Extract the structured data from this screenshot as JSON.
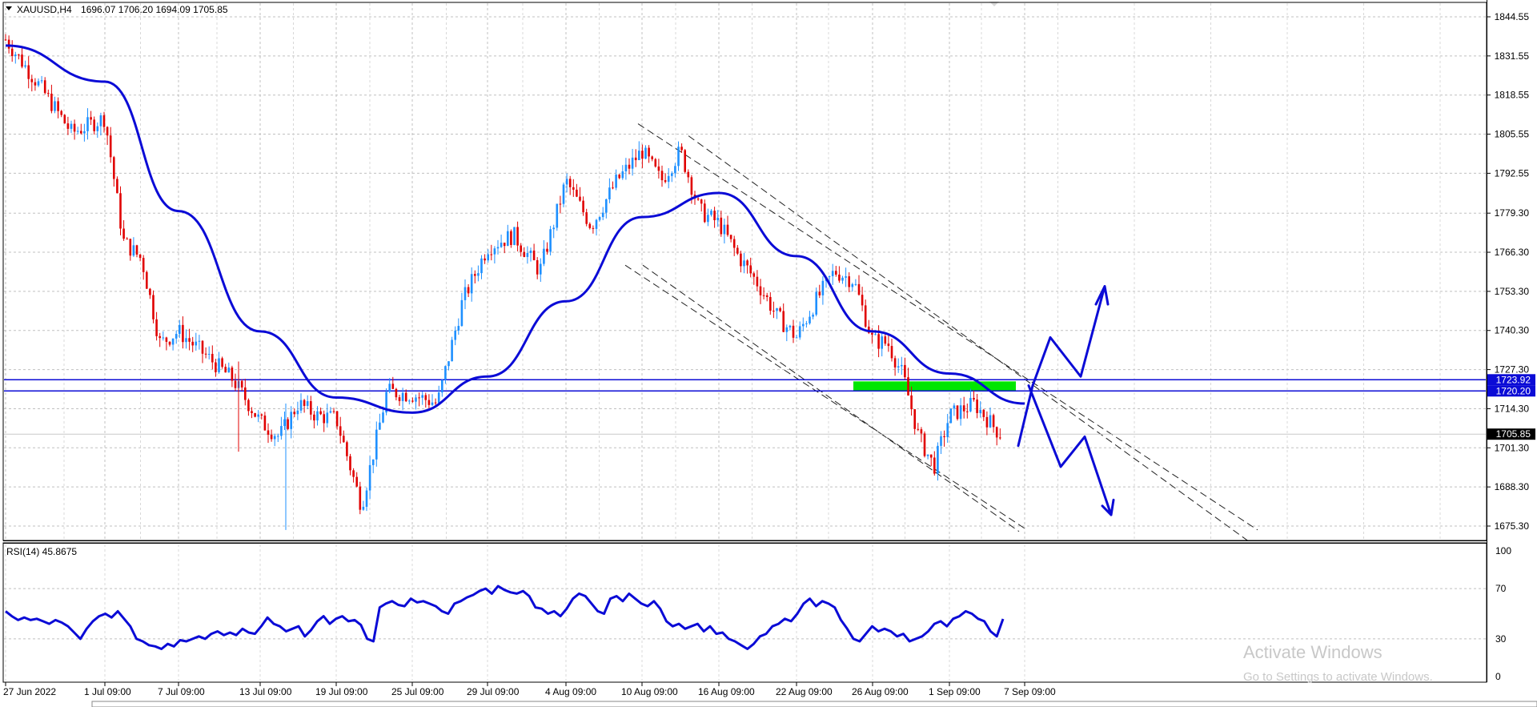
{
  "symbol_header": {
    "symbol": "XAUUSD,H4",
    "ohlc": "1696.07 1706.20 1694.09 1705.85"
  },
  "chart_data": [
    {
      "type": "candlestick",
      "title": "XAUUSD,H4",
      "ylim": [
        1665.0,
        1849.0
      ],
      "y_ticks": [
        "1844.55",
        "1831.55",
        "1818.55",
        "1805.55",
        "1792.55",
        "1779.30",
        "1766.30",
        "1753.30",
        "1740.30",
        "1727.30",
        "1714.30",
        "1701.30",
        "1688.30",
        "1675.30"
      ],
      "x_ticks": [
        "27 Jun 2022",
        "1 Jul 09:00",
        "7 Jul 09:00",
        "13 Jul 09:00",
        "19 Jul 09:00",
        "25 Jul 09:00",
        "29 Jul 09:00",
        "4 Aug 09:00",
        "10 Aug 09:00",
        "16 Aug 09:00",
        "22 Aug 09:00",
        "26 Aug 09:00",
        "1 Sep 09:00",
        "7 Sep 09:00"
      ],
      "price_keypoints": [
        {
          "t": "27 Jun 2022",
          "p": 1837
        },
        {
          "t": "28 Jun 2022",
          "p": 1822
        },
        {
          "t": "30 Jun 2022",
          "p": 1806
        },
        {
          "t": "1 Jul 09:00",
          "p": 1811
        },
        {
          "t": "2 Jul 2022",
          "p": 1770
        },
        {
          "t": "5 Jul 2022",
          "p": 1764
        },
        {
          "t": "6 Jul 2022",
          "p": 1736
        },
        {
          "t": "7 Jul 09:00",
          "p": 1740
        },
        {
          "t": "11 Jul 2022",
          "p": 1732
        },
        {
          "t": "12 Jul 2022",
          "p": 1724
        },
        {
          "t": "13 Jul 09:00",
          "p": 1710
        },
        {
          "t": "14 Jul 2022",
          "p": 1705
        },
        {
          "t": "15 Jul 2022",
          "p": 1716
        },
        {
          "t": "18 Jul 2022",
          "p": 1712
        },
        {
          "t": "19 Jul 09:00",
          "p": 1711
        },
        {
          "t": "21 Jul 2022",
          "p": 1682
        },
        {
          "t": "22 Jul 2022",
          "p": 1720
        },
        {
          "t": "25 Jul 09:00",
          "p": 1719
        },
        {
          "t": "27 Jul 2022",
          "p": 1716
        },
        {
          "t": "28 Jul 2022",
          "p": 1750
        },
        {
          "t": "29 Jul 09:00",
          "p": 1768
        },
        {
          "t": "1 Aug 2022",
          "p": 1772
        },
        {
          "t": "3 Aug 2022",
          "p": 1760
        },
        {
          "t": "4 Aug 09:00",
          "p": 1790
        },
        {
          "t": "5 Aug 2022",
          "p": 1775
        },
        {
          "t": "8 Aug 2022",
          "p": 1790
        },
        {
          "t": "10 Aug 09:00",
          "p": 1800
        },
        {
          "t": "11 Aug 2022",
          "p": 1790
        },
        {
          "t": "12 Aug 2022",
          "p": 1800
        },
        {
          "t": "15 Aug 2022",
          "p": 1780
        },
        {
          "t": "16 Aug 09:00",
          "p": 1776
        },
        {
          "t": "17 Aug 2022",
          "p": 1765
        },
        {
          "t": "18 Aug 2022",
          "p": 1756
        },
        {
          "t": "19 Aug 2022",
          "p": 1745
        },
        {
          "t": "22 Aug 09:00",
          "p": 1738
        },
        {
          "t": "23 Aug 2022",
          "p": 1750
        },
        {
          "t": "24 Aug 2022",
          "p": 1760
        },
        {
          "t": "25 Aug 2022",
          "p": 1757
        },
        {
          "t": "26 Aug 09:00",
          "p": 1737
        },
        {
          "t": "29 Aug 2022",
          "p": 1736
        },
        {
          "t": "30 Aug 2022",
          "p": 1725
        },
        {
          "t": "31 Aug 2022",
          "p": 1705
        },
        {
          "t": "1 Sep 2022",
          "p": 1695
        },
        {
          "t": "1 Sep 09:00",
          "p": 1712
        },
        {
          "t": "5 Sep 2022",
          "p": 1716
        },
        {
          "t": "6 Sep 2022",
          "p": 1706
        },
        {
          "t": "7 Sep 09:00",
          "p": 1705.85
        }
      ],
      "moving_average_keypoints": [
        {
          "t": "27 Jun 2022",
          "p": 1835
        },
        {
          "t": "1 Jul 09:00",
          "p": 1823
        },
        {
          "t": "7 Jul 09:00",
          "p": 1780
        },
        {
          "t": "13 Jul 09:00",
          "p": 1740
        },
        {
          "t": "19 Jul 09:00",
          "p": 1718
        },
        {
          "t": "25 Jul 09:00",
          "p": 1713
        },
        {
          "t": "29 Jul 09:00",
          "p": 1725
        },
        {
          "t": "4 Aug 09:00",
          "p": 1750
        },
        {
          "t": "10 Aug 09:00",
          "p": 1778
        },
        {
          "t": "16 Aug 09:00",
          "p": 1786
        },
        {
          "t": "22 Aug 09:00",
          "p": 1765
        },
        {
          "t": "26 Aug 09:00",
          "p": 1740
        },
        {
          "t": "1 Sep 09:00",
          "p": 1726
        },
        {
          "t": "7 Sep 09:00",
          "p": 1716
        }
      ],
      "horizontal_levels": [
        {
          "label": "1723.92",
          "price": 1723.92
        },
        {
          "label": "1720.20",
          "price": 1720.2
        }
      ],
      "current_price": {
        "label": "1705.85",
        "price": 1705.85
      },
      "zone": {
        "from": "26 Aug 09:00",
        "to": "7 Sep 09:00",
        "price_top": 1723.92,
        "price_bottom": 1720.2,
        "color": "#00e600"
      },
      "channel": {
        "upper": [
          {
            "t": "10 Aug 09:00",
            "p": 1809
          },
          {
            "t": "after 7 Sep",
            "p": 1674
          }
        ],
        "lower": [
          {
            "t": "4 Aug 09:00",
            "p": 1762
          },
          {
            "t": "7 Sep 09:00",
            "p": 1674
          }
        ]
      },
      "drawn_projections": {
        "bullish_path": [
          1702,
          1722,
          1738,
          1725,
          1755
        ],
        "bearish_path": [
          1722,
          1695,
          1705,
          1679
        ]
      }
    },
    {
      "type": "line",
      "title": "RSI(14) 45.8675",
      "ylim": [
        0,
        100
      ],
      "y_ticks": [
        "100",
        "70",
        "30",
        "0"
      ],
      "series": [
        {
          "name": "RSI(14)",
          "color": "#0b0bd6",
          "values": [
            52,
            48,
            45,
            47,
            45,
            46,
            44,
            42,
            45,
            43,
            40,
            35,
            30,
            38,
            44,
            48,
            50,
            47,
            52,
            46,
            40,
            30,
            28,
            25,
            24,
            22,
            26,
            24,
            29,
            28,
            30,
            32,
            30,
            34,
            36,
            33,
            35,
            33,
            38,
            35,
            34,
            40,
            47,
            42,
            40,
            36,
            38,
            40,
            32,
            37,
            44,
            48,
            42,
            46,
            48,
            44,
            45,
            41,
            30,
            28,
            55,
            58,
            60,
            57,
            56,
            62,
            59,
            60,
            58,
            56,
            52,
            50,
            58,
            60,
            63,
            65,
            68,
            70,
            66,
            72,
            69,
            67,
            66,
            68,
            64,
            55,
            54,
            50,
            52,
            48,
            54,
            62,
            66,
            64,
            58,
            52,
            50,
            62,
            64,
            60,
            66,
            62,
            58,
            56,
            60,
            54,
            44,
            40,
            42,
            38,
            40,
            42,
            36,
            40,
            34,
            35,
            30,
            28,
            25,
            22,
            26,
            32,
            34,
            40,
            42,
            46,
            44,
            50,
            58,
            62,
            56,
            60,
            58,
            55,
            45,
            38,
            30,
            28,
            34,
            40,
            36,
            38,
            36,
            32,
            34,
            28,
            30,
            32,
            36,
            42,
            44,
            40,
            46,
            48,
            52,
            50,
            46,
            44,
            36,
            32,
            45.87
          ]
        }
      ]
    }
  ],
  "watermark": {
    "line1": "Activate Windows",
    "line2": "Go to Settings to activate Windows."
  }
}
